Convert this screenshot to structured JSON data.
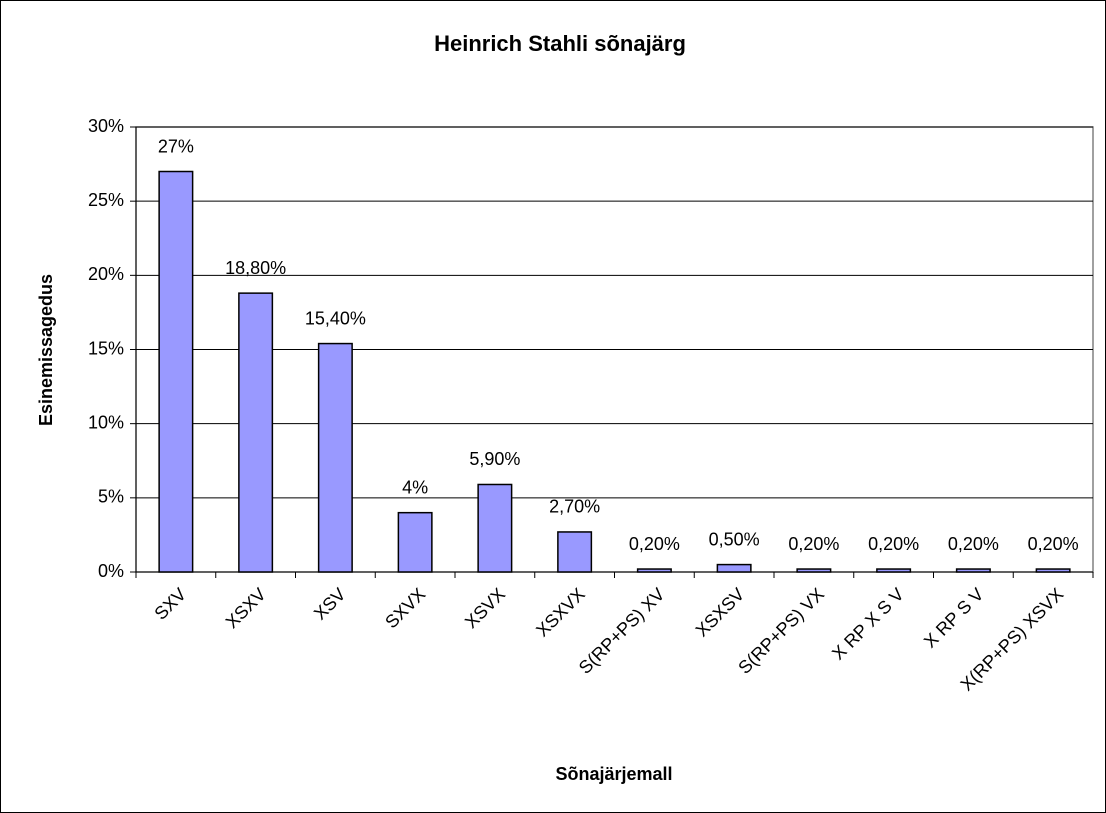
{
  "chart_data": {
    "type": "bar",
    "title": "Heinrich Stahli sõnajärg",
    "x_label": "Sõnajärjemall",
    "y_label": "Esinemissagedus",
    "categories": [
      "SXV",
      "XSXV",
      "XSV",
      "SXVX",
      "XSVX",
      "XSXVX",
      "S(RP+PS) XV",
      "XSXSV",
      "S(RP+PS) VX",
      "X RP X S V",
      "X RP S V",
      "X(RP+PS) XSVX"
    ],
    "values": [
      27,
      18.8,
      15.4,
      4,
      5.9,
      2.7,
      0.2,
      0.5,
      0.2,
      0.2,
      0.2,
      0.2
    ],
    "value_labels": [
      "27%",
      "18,80%",
      "15,40%",
      "4%",
      "5,90%",
      "2,70%",
      "0,20%",
      "0,50%",
      "0,20%",
      "0,20%",
      "0,20%",
      "0,20%"
    ],
    "color": "#9999ff",
    "ylim": [
      0,
      30
    ],
    "yticks": [
      {
        "value": 0,
        "label": "0%"
      },
      {
        "value": 5,
        "label": "5%"
      },
      {
        "value": 10,
        "label": "10%"
      },
      {
        "value": 15,
        "label": "15%"
      },
      {
        "value": 20,
        "label": "20%"
      },
      {
        "value": 25,
        "label": "25%"
      },
      {
        "value": 30,
        "label": "30%"
      }
    ],
    "grid": true
  }
}
